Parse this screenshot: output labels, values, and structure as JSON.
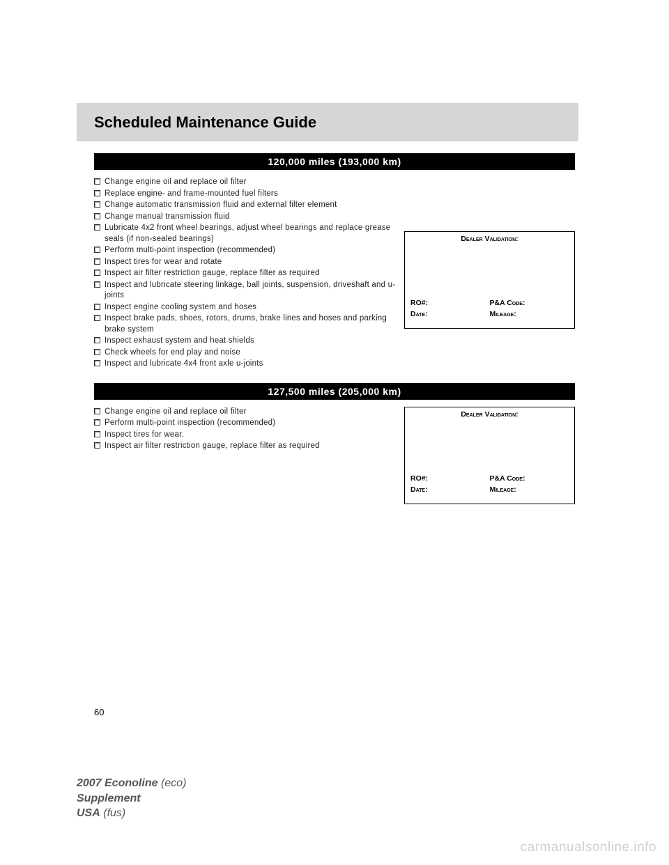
{
  "header": {
    "title": "Scheduled Maintenance Guide"
  },
  "sections": [
    {
      "miles_title": "120,000 miles (193,000 km)",
      "items": [
        "Change engine oil and replace oil filter",
        "Replace engine- and frame-mounted fuel filters",
        "Change automatic transmission fluid and external filter element",
        "Change manual transmission fluid",
        "Lubricate 4x2 front wheel bearings, adjust wheel bearings and replace grease seals (if non-sealed bearings)",
        "Perform multi-point inspection (recommended)",
        "Inspect tires for wear and rotate",
        "Inspect air filter restriction gauge, replace filter as required",
        "Inspect and lubricate steering linkage, ball joints, suspension, driveshaft and u-joints",
        "Inspect engine cooling system and hoses",
        "Inspect brake pads, shoes, rotors, drums, brake lines and hoses and parking brake system",
        "Inspect exhaust system and heat shields",
        "Check wheels for end play and noise",
        "Inspect and lubricate 4x4 front axle u-joints"
      ]
    },
    {
      "miles_title": "127,500 miles (205,000 km)",
      "items": [
        "Change engine oil and replace oil filter",
        "Perform multi-point inspection (recommended)",
        "Inspect tires for wear.",
        "Inspect air filter restriction gauge, replace filter as required"
      ]
    }
  ],
  "dealer_box": {
    "title": "Dealer Validation:",
    "ro": "RO#:",
    "pacode": "P&A Code:",
    "date": "Date:",
    "mileage": "Mileage:"
  },
  "page_number": "60",
  "footer": {
    "line1_bold": "2007 Econoline",
    "line1_italic": "(eco)",
    "line2_bold": "Supplement",
    "line3_bold": "USA",
    "line3_italic": "(fus)"
  },
  "watermark": "carmanualsonline.info",
  "colors": {
    "header_bg": "#d6d6d6",
    "miles_bg": "#000000",
    "miles_fg": "#ffffff",
    "text": "#222222",
    "footer": "#555555",
    "watermark": "#cfcfcf"
  }
}
